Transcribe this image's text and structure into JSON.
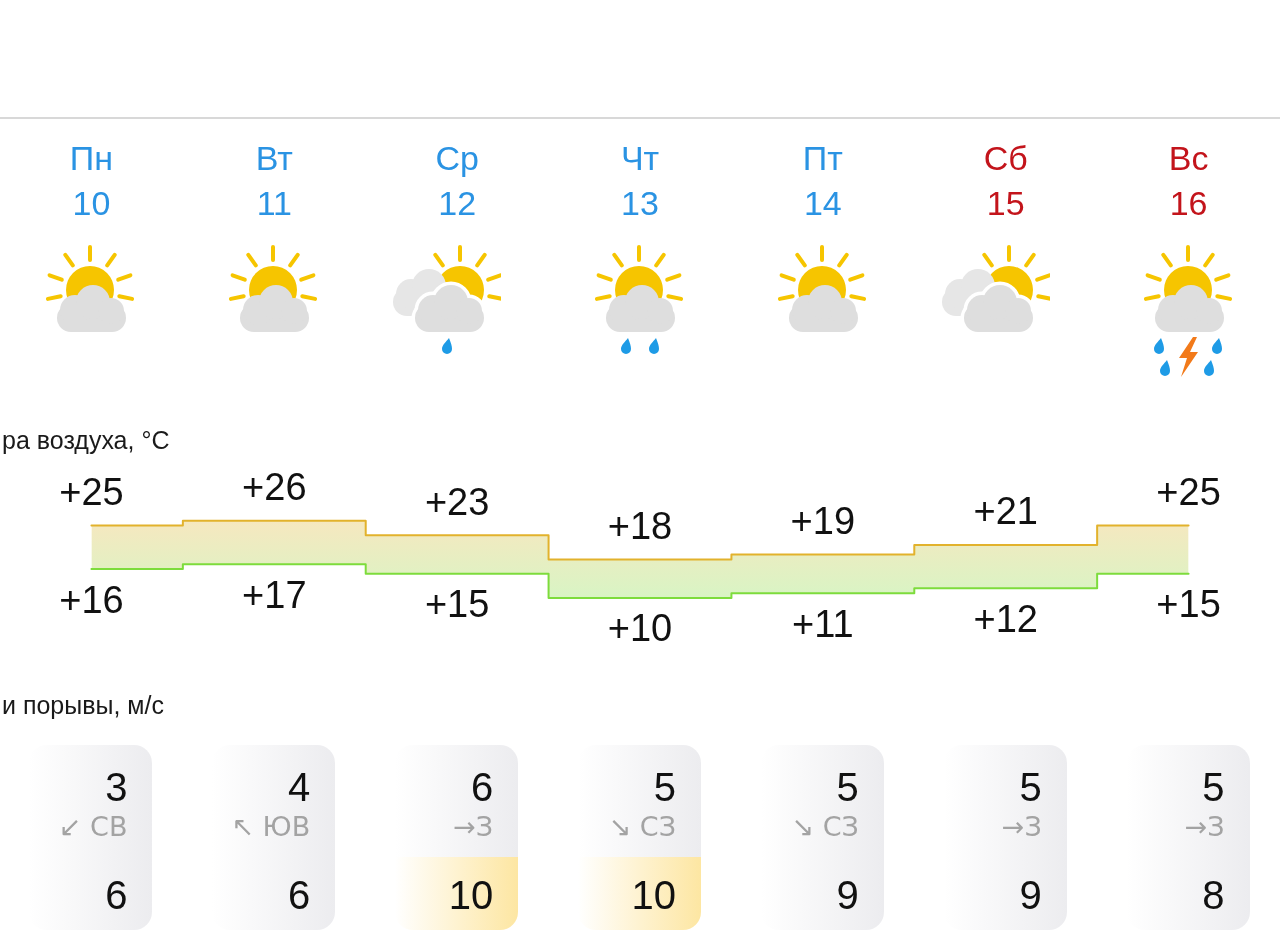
{
  "chart_data": [
    {
      "type": "step",
      "title": "ра воздуха, °C",
      "categories": [
        "Пн 10",
        "Вт 11",
        "Ср 12",
        "Чт 13",
        "Пт 14",
        "Сб 15",
        "Вс 16"
      ],
      "series": [
        {
          "color": "#e2b22c",
          "values": [
            25,
            26,
            23,
            18,
            19,
            21,
            25
          ],
          "value_labels": [
            "+25",
            "+26",
            "+23",
            "+18",
            "+19",
            "+21",
            "+25"
          ],
          "lower": [
            16,
            17,
            15,
            10,
            11,
            12,
            15
          ],
          "upper": [
            25,
            26,
            23,
            18,
            19,
            21,
            25
          ]
        },
        {
          "color": "#7ddc3c",
          "values": [
            16,
            17,
            15,
            10,
            11,
            12,
            15
          ],
          "value_labels": [
            "+16",
            "+17",
            "+15",
            "+10",
            "+11",
            "+12",
            "+15"
          ]
        }
      ]
    },
    {
      "type": "other",
      "title": "и порывы, м/с",
      "annotations": [
        "3",
        "↙ СВ",
        "6",
        "4",
        "↖ ЮВ",
        "6",
        "6",
        "→З",
        "10",
        "5",
        "↘ СЗ",
        "10",
        "5",
        "↘ СЗ",
        "9",
        "5",
        "→З",
        "9",
        "5",
        "→З",
        "8"
      ],
      "colors": [
        "#ececef",
        "#ececef",
        "#fde6a2",
        "#fde6a2",
        "#ececef",
        "#ececef",
        "#ececef"
      ]
    }
  ]
}
